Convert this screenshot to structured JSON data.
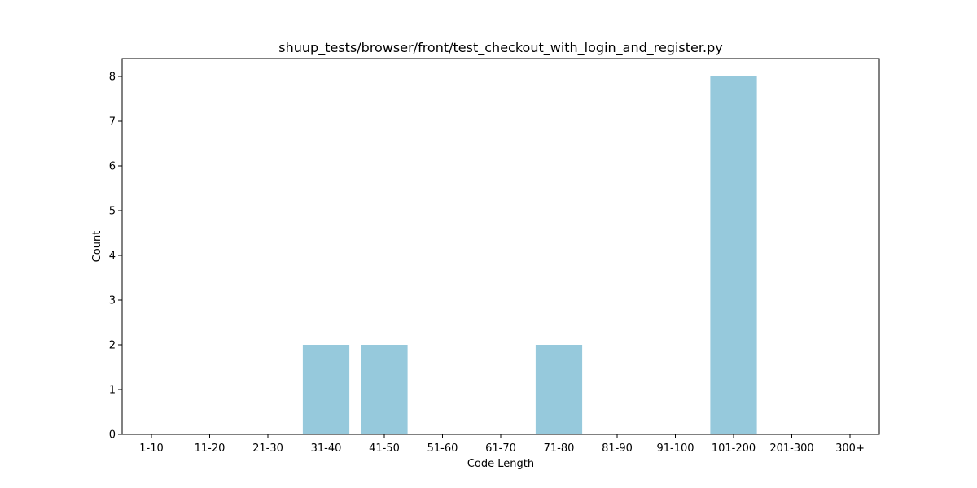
{
  "chart_data": {
    "type": "bar",
    "title": "shuup_tests/browser/front/test_checkout_with_login_and_register.py",
    "xlabel": "Code Length",
    "ylabel": "Count",
    "categories": [
      "1-10",
      "11-20",
      "21-30",
      "31-40",
      "41-50",
      "51-60",
      "61-70",
      "71-80",
      "81-90",
      "91-100",
      "101-200",
      "201-300",
      "300+"
    ],
    "values": [
      0,
      0,
      0,
      2,
      2,
      0,
      0,
      2,
      0,
      0,
      8,
      0,
      0
    ],
    "ylim": [
      0,
      8.4
    ],
    "yticks": [
      0,
      1,
      2,
      3,
      4,
      5,
      6,
      7,
      8
    ],
    "bar_color": "#96c9dc",
    "grid": false,
    "legend": "none"
  }
}
